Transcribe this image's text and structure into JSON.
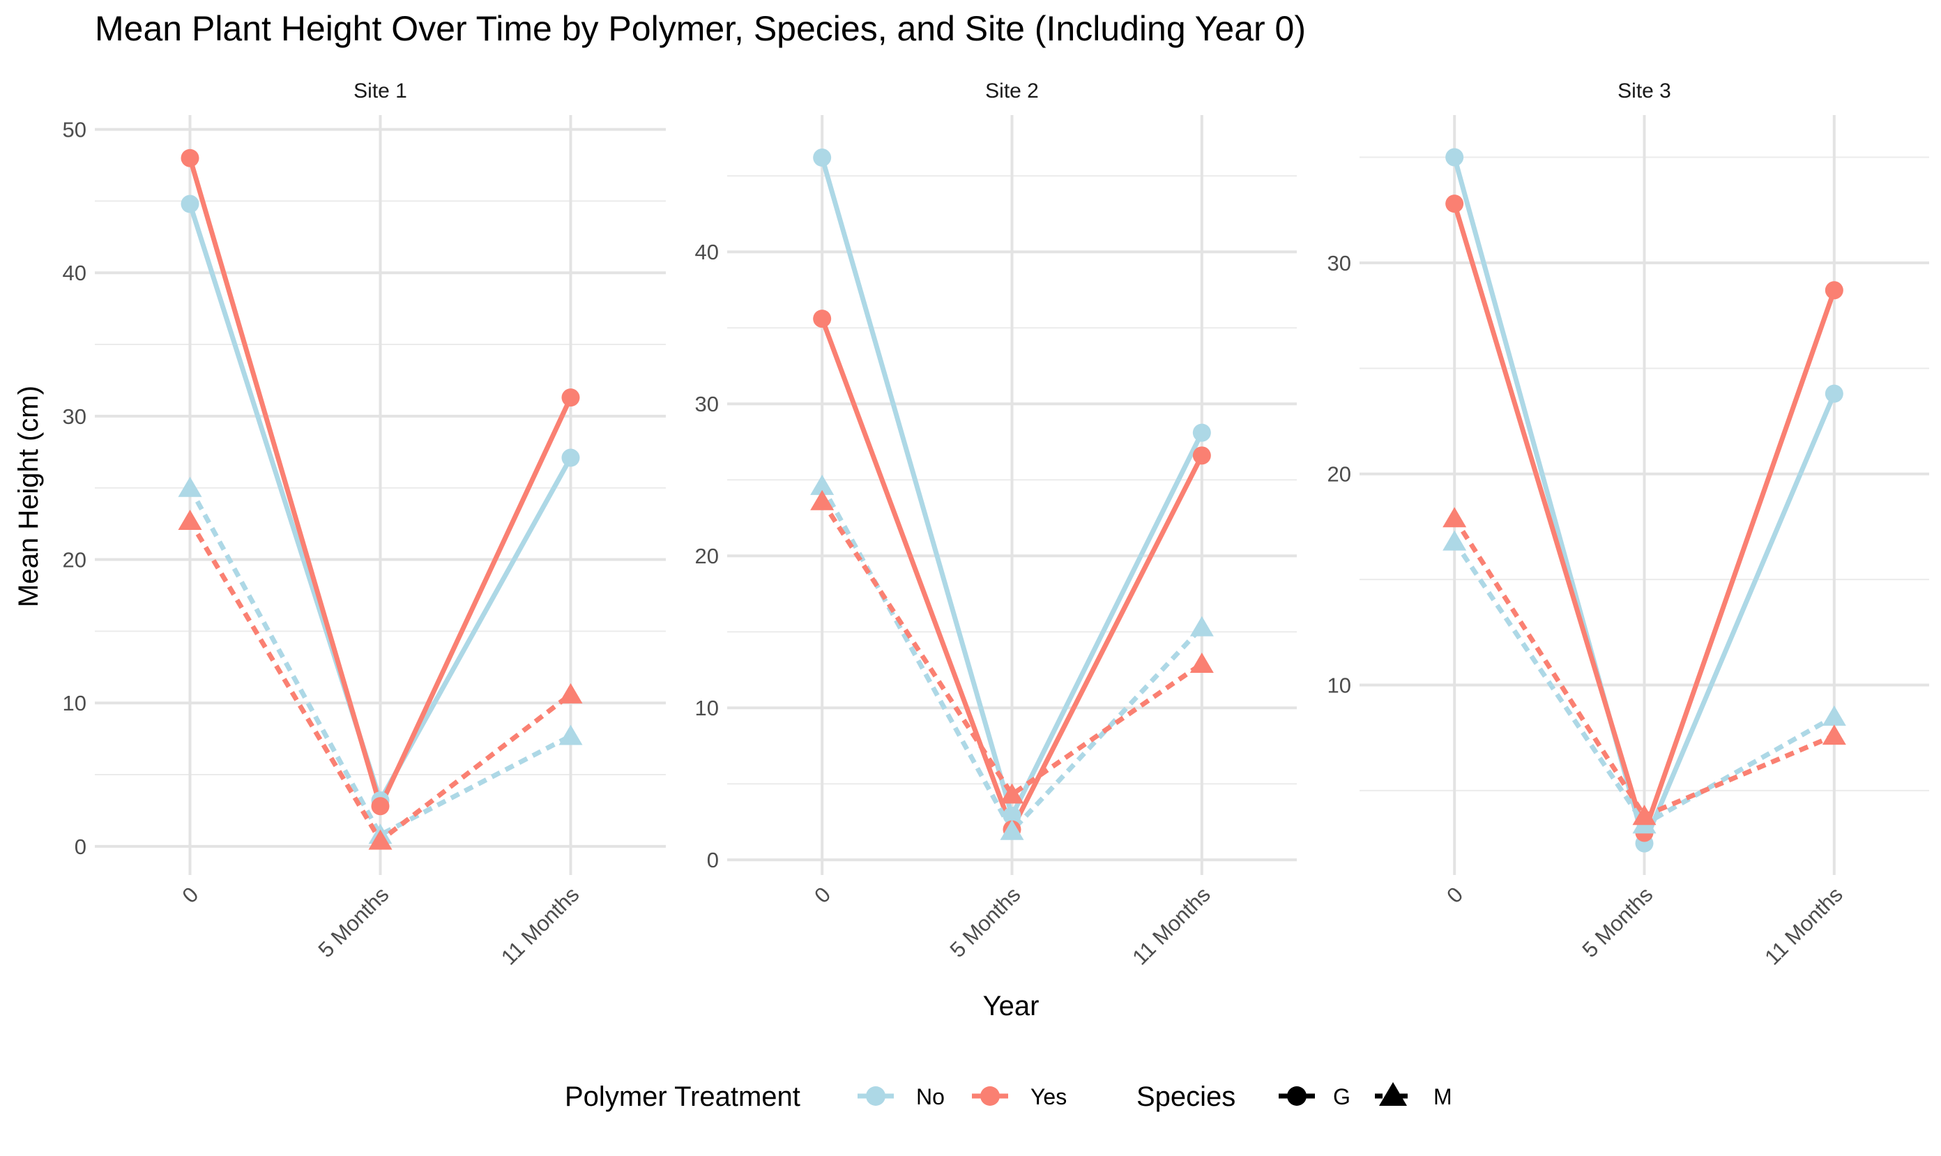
{
  "title": "Mean Plant Height Over Time by Polymer, Species, and Site (Including Year 0)",
  "chart_data": {
    "type": "line",
    "title": "Mean Plant Height Over Time by Polymer, Species, and Site (Including Year 0)",
    "xlabel": "Year",
    "ylabel": "Mean Height (cm)",
    "categories": [
      "0",
      "5 Months",
      "11 Months"
    ],
    "legend": {
      "position": "bottom",
      "polymer_title": "Polymer Treatment",
      "polymer_items": [
        {
          "label": "No",
          "color": "#add8e6"
        },
        {
          "label": "Yes",
          "color": "#fa8072"
        }
      ],
      "species_title": "Species",
      "species_items": [
        {
          "label": "G",
          "shape": "circle",
          "linetype": "solid"
        },
        {
          "label": "M",
          "shape": "triangle",
          "linetype": "dashed"
        }
      ]
    },
    "grid": true,
    "facets": [
      {
        "name": "Site 1",
        "ylim": [
          -2,
          51
        ],
        "yticks": [
          0,
          10,
          20,
          30,
          40,
          50
        ],
        "series": [
          {
            "polymer": "No",
            "species": "G",
            "values": [
              44.8,
              3.2,
              27.1
            ]
          },
          {
            "polymer": "Yes",
            "species": "G",
            "values": [
              48.0,
              2.8,
              31.3
            ]
          },
          {
            "polymer": "No",
            "species": "M",
            "values": [
              25.0,
              0.8,
              7.7
            ]
          },
          {
            "polymer": "Yes",
            "species": "M",
            "values": [
              22.7,
              0.4,
              10.6
            ]
          }
        ]
      },
      {
        "name": "Site 2",
        "ylim": [
          -1,
          49
        ],
        "yticks": [
          0,
          10,
          20,
          30,
          40
        ],
        "series": [
          {
            "polymer": "No",
            "species": "G",
            "values": [
              46.2,
              2.9,
              28.1
            ]
          },
          {
            "polymer": "Yes",
            "species": "G",
            "values": [
              35.6,
              2.0,
              26.6
            ]
          },
          {
            "polymer": "No",
            "species": "M",
            "values": [
              24.6,
              1.9,
              15.3
            ]
          },
          {
            "polymer": "Yes",
            "species": "M",
            "values": [
              23.6,
              4.3,
              12.9
            ]
          }
        ]
      },
      {
        "name": "Site 3",
        "ylim": [
          1,
          37
        ],
        "yticks": [
          10,
          20,
          30
        ],
        "series": [
          {
            "polymer": "No",
            "species": "G",
            "values": [
              35.0,
              2.5,
              23.8
            ]
          },
          {
            "polymer": "Yes",
            "species": "G",
            "values": [
              32.8,
              3.0,
              28.7
            ]
          },
          {
            "polymer": "No",
            "species": "M",
            "values": [
              16.8,
              3.4,
              8.5
            ]
          },
          {
            "polymer": "Yes",
            "species": "M",
            "values": [
              17.9,
              3.8,
              7.6
            ]
          }
        ]
      }
    ]
  }
}
